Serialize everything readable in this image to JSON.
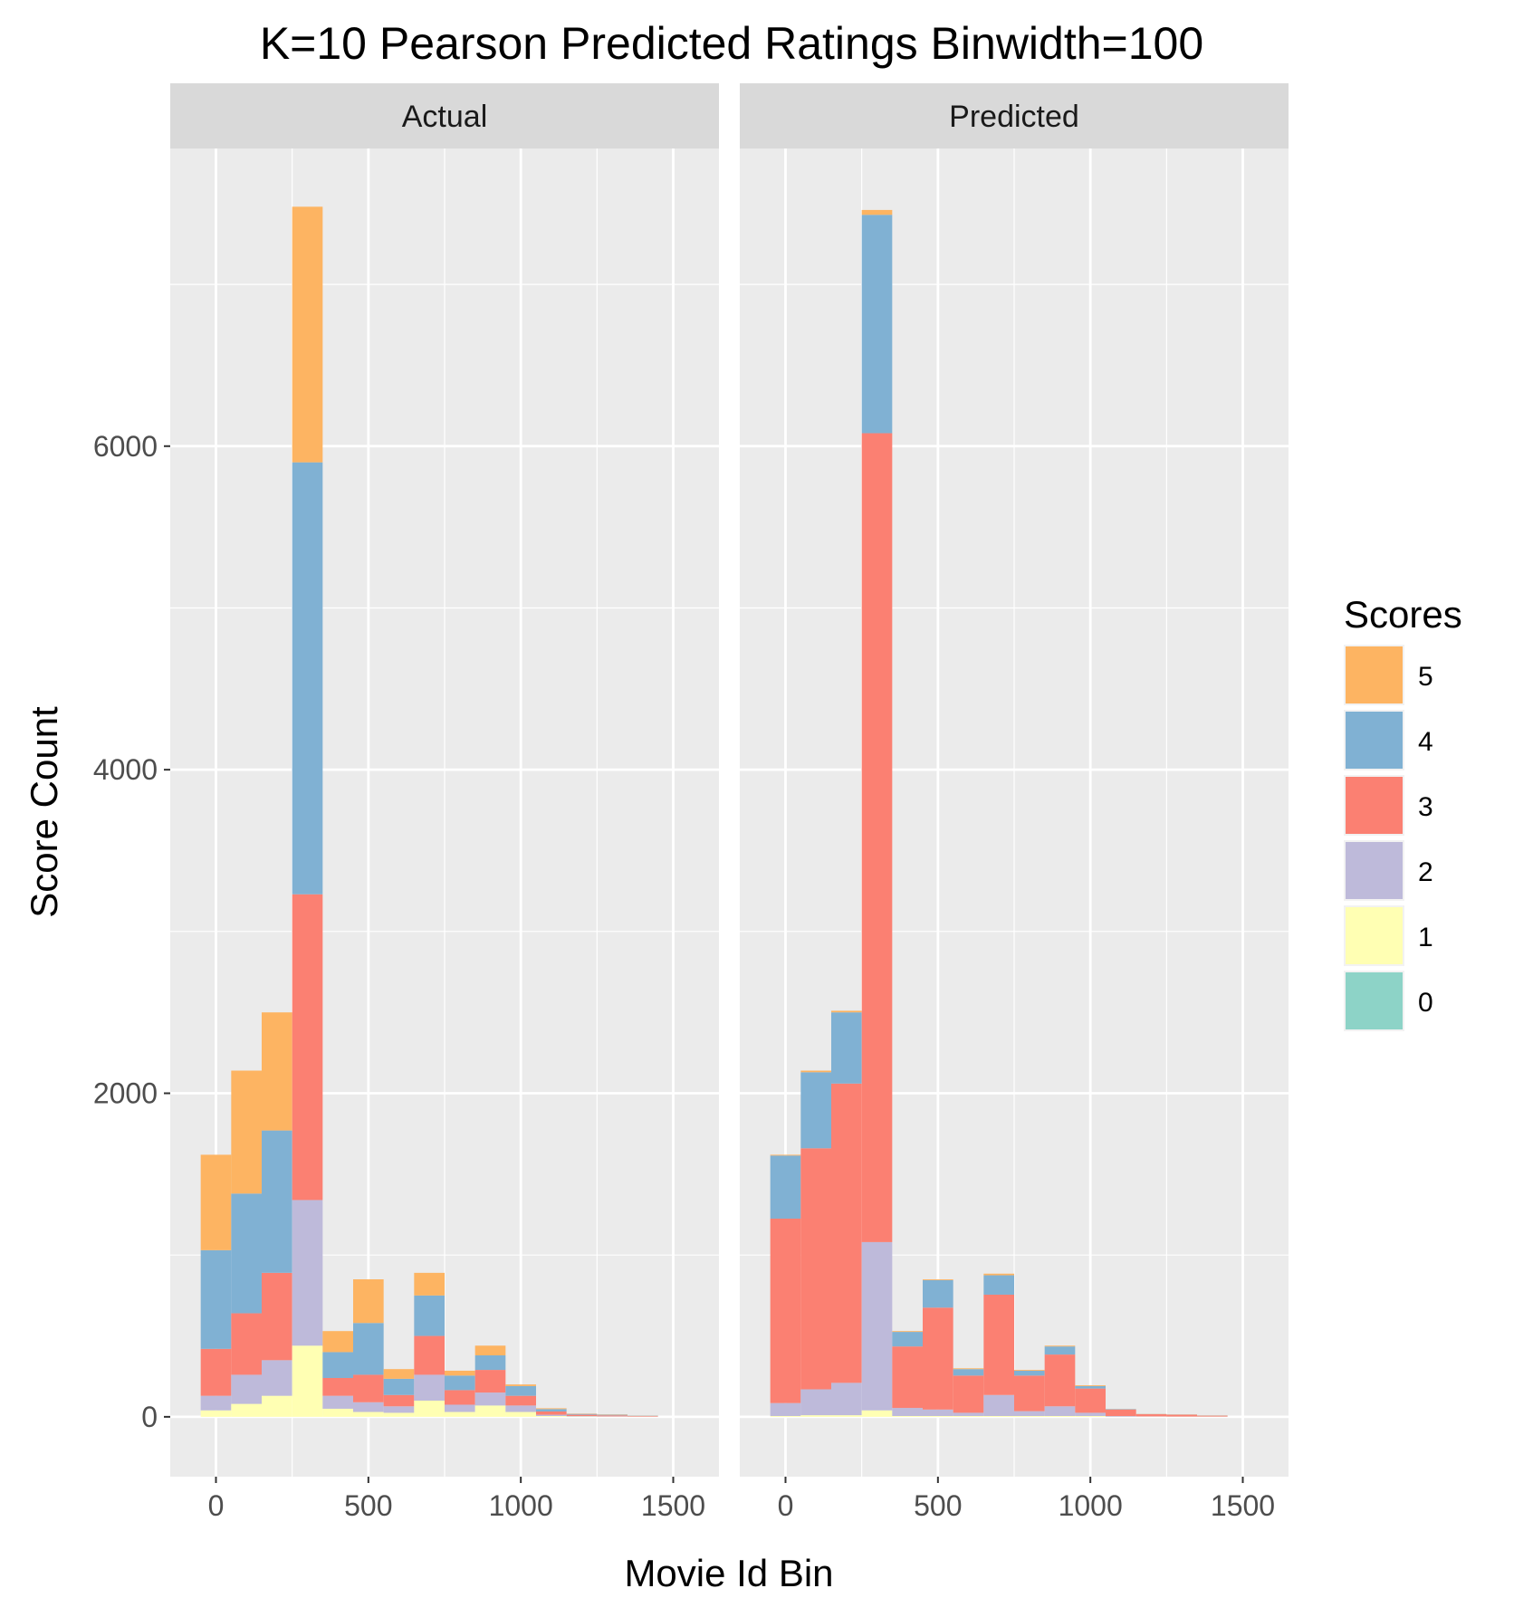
{
  "chart_data": {
    "type": "bar",
    "stacked": true,
    "title": "K=10 Pearson Predicted Ratings Binwidth=100",
    "xlabel": "Movie Id Bin",
    "ylabel": "Score Count",
    "x_ticks": [
      0,
      500,
      1000,
      1500
    ],
    "y_ticks": [
      0,
      2000,
      4000,
      6000
    ],
    "xlim": [
      -150,
      1650
    ],
    "ylim": [
      -370,
      7840
    ],
    "bin_width": 100,
    "bin_centers": [
      0,
      100,
      200,
      300,
      400,
      500,
      600,
      700,
      800,
      900,
      1000,
      1100,
      1200,
      1300,
      1400
    ],
    "grid": true,
    "legend": {
      "title": "Scores",
      "position": "right",
      "entries": [
        {
          "label": "5",
          "color": "#FDB462"
        },
        {
          "label": "4",
          "color": "#80B1D3"
        },
        {
          "label": "3",
          "color": "#FB8072"
        },
        {
          "label": "2",
          "color": "#BEBADA"
        },
        {
          "label": "1",
          "color": "#FFFFB3"
        },
        {
          "label": "0",
          "color": "#8DD3C7"
        }
      ]
    },
    "panels": [
      {
        "label": "Actual",
        "series": [
          {
            "name": "0",
            "values": [
              0,
              0,
              0,
              0,
              0,
              0,
              0,
              0,
              0,
              0,
              0,
              0,
              0,
              0,
              0
            ]
          },
          {
            "name": "1",
            "values": [
              40,
              80,
              130,
              440,
              50,
              30,
              25,
              100,
              30,
              70,
              30,
              5,
              2,
              1,
              1
            ]
          },
          {
            "name": "2",
            "values": [
              90,
              180,
              220,
              900,
              80,
              60,
              40,
              160,
              45,
              80,
              40,
              8,
              3,
              2,
              1
            ]
          },
          {
            "name": "3",
            "values": [
              290,
              380,
              540,
              1890,
              110,
              170,
              70,
              240,
              90,
              140,
              60,
              20,
              8,
              6,
              3
            ]
          },
          {
            "name": "4",
            "values": [
              610,
              740,
              880,
              2670,
              160,
              320,
              100,
              250,
              90,
              90,
              60,
              15,
              5,
              4,
              2
            ]
          },
          {
            "name": "5",
            "values": [
              590,
              760,
              730,
              1580,
              130,
              270,
              60,
              140,
              30,
              60,
              10,
              5,
              2,
              2,
              1
            ]
          }
        ]
      },
      {
        "label": "Predicted",
        "series": [
          {
            "name": "0",
            "values": [
              0,
              0,
              0,
              0,
              0,
              0,
              0,
              0,
              0,
              0,
              0,
              0,
              0,
              0,
              0
            ]
          },
          {
            "name": "1",
            "values": [
              5,
              10,
              10,
              40,
              5,
              5,
              5,
              5,
              5,
              5,
              5,
              1,
              1,
              1,
              1
            ]
          },
          {
            "name": "2",
            "values": [
              80,
              160,
              200,
              1040,
              50,
              40,
              20,
              130,
              30,
              60,
              20,
              4,
              2,
              1,
              1
            ]
          },
          {
            "name": "3",
            "values": [
              1140,
              1490,
              1850,
              5000,
              380,
              630,
              230,
              620,
              220,
              320,
              150,
              40,
              13,
              11,
              5
            ]
          },
          {
            "name": "4",
            "values": [
              390,
              470,
              440,
              1350,
              90,
              170,
              40,
              120,
              30,
              50,
              15,
              3,
              1,
              1,
              1
            ]
          },
          {
            "name": "5",
            "values": [
              5,
              10,
              10,
              30,
              5,
              5,
              5,
              10,
              5,
              5,
              5,
              1,
              1,
              1,
              1
            ]
          }
        ]
      }
    ]
  }
}
